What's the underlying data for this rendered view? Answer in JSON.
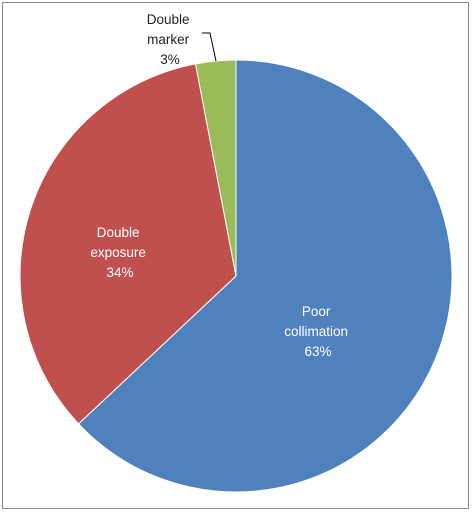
{
  "chart_data": {
    "type": "pie",
    "slices": [
      {
        "lines": [
          "Poor",
          "collimation",
          "63%"
        ],
        "value": 63,
        "color": "#4f81bd"
      },
      {
        "lines": [
          "Double",
          "exposure",
          "34%"
        ],
        "value": 34,
        "color": "#c0504d"
      },
      {
        "lines": [
          "Double",
          "marker",
          "3%"
        ],
        "value": 3,
        "color": "#9bbb59"
      }
    ],
    "start_angle_deg": 0,
    "direction": "clockwise",
    "legend": "none"
  }
}
